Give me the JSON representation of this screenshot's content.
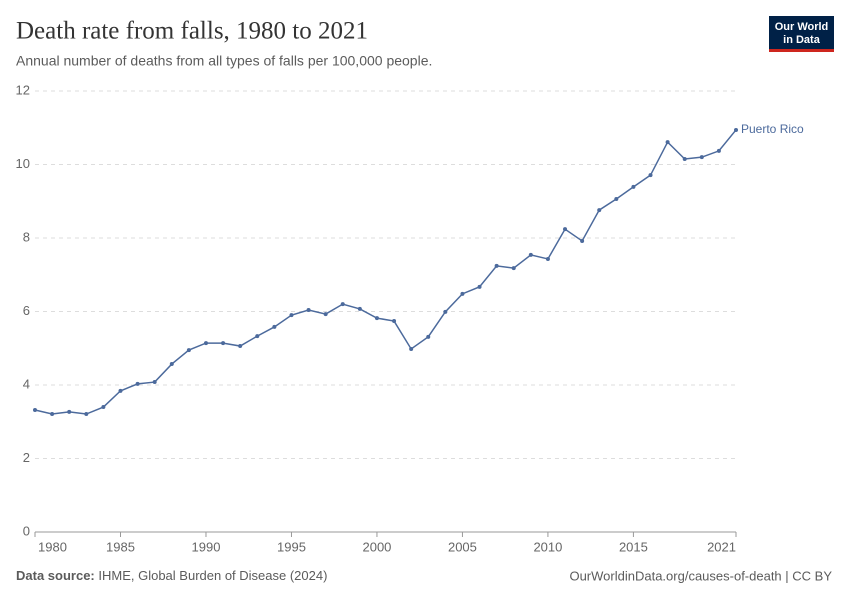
{
  "chart_data": {
    "type": "line",
    "title": "Death rate from falls, 1980 to 2021",
    "subtitle": "Annual number of deaths from all types of falls per 100,000 people.",
    "logo": [
      "Our World",
      "in Data"
    ],
    "source_label": "Data source:",
    "source": "IHME, Global Burden of Disease (2024)",
    "url": "OurWorldinData.org/causes-of-death | CC BY",
    "x": [
      1980,
      1981,
      1982,
      1983,
      1984,
      1985,
      1986,
      1987,
      1988,
      1989,
      1990,
      1991,
      1992,
      1993,
      1994,
      1995,
      1996,
      1997,
      1998,
      1999,
      2000,
      2001,
      2002,
      2003,
      2004,
      2005,
      2006,
      2007,
      2008,
      2009,
      2010,
      2011,
      2012,
      2013,
      2014,
      2015,
      2016,
      2017,
      2018,
      2019,
      2020,
      2021
    ],
    "series": [
      {
        "name": "Puerto Rico",
        "color": "#4c6a9c",
        "values": [
          3.32,
          3.21,
          3.27,
          3.21,
          3.4,
          3.84,
          4.03,
          4.08,
          4.57,
          4.95,
          5.14,
          5.14,
          5.06,
          5.33,
          5.58,
          5.9,
          6.04,
          5.93,
          6.2,
          6.07,
          5.82,
          5.74,
          4.98,
          5.31,
          5.99,
          6.48,
          6.67,
          7.24,
          7.18,
          7.54,
          7.43,
          8.24,
          7.92,
          8.76,
          9.06,
          9.39,
          9.71,
          10.61,
          10.15,
          10.2,
          10.37,
          10.94
        ]
      }
    ],
    "xlim": [
      1980,
      2021
    ],
    "xticks": [
      1980,
      1985,
      1990,
      1995,
      2000,
      2005,
      2010,
      2015,
      2021
    ],
    "ylim": [
      0,
      12
    ],
    "yticks": [
      0,
      2,
      4,
      6,
      8,
      10,
      12
    ],
    "grid": true
  }
}
